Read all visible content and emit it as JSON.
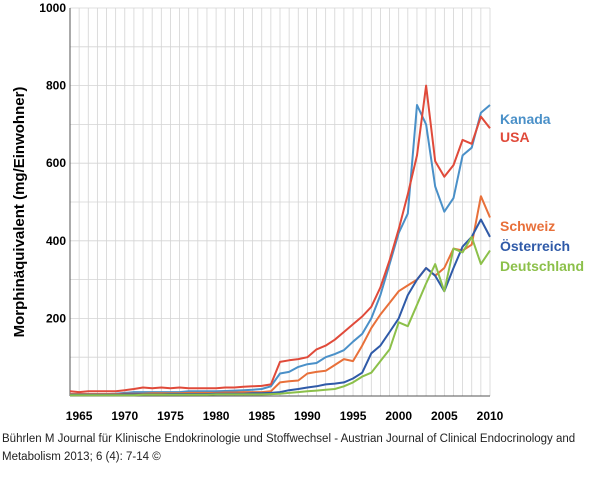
{
  "caption": "Bührlen M Journal für Klinische Endokrinologie und Stoffwechsel - Austrian Journal of Clinical Endocrinology and Metabolism 2013; 6 (4): 7-14 ©",
  "chart_data": {
    "type": "line",
    "title": "",
    "xlabel": "",
    "ylabel": "Morphinäquivalent (mg/Einwohner)",
    "xlim": [
      1964,
      2010
    ],
    "ylim": [
      0,
      1000
    ],
    "xticks": [
      1965,
      1970,
      1975,
      1980,
      1985,
      1990,
      1995,
      2000,
      2005,
      2010
    ],
    "yticks": [
      200,
      400,
      600,
      800,
      1000
    ],
    "grid": true,
    "legend": "right, labels next to line ends",
    "series": [
      {
        "name": "Kanada",
        "color": "#4a90c8",
        "x": [
          1964,
          1965,
          1966,
          1967,
          1968,
          1969,
          1970,
          1971,
          1972,
          1973,
          1974,
          1975,
          1976,
          1977,
          1978,
          1979,
          1980,
          1981,
          1982,
          1983,
          1984,
          1985,
          1986,
          1987,
          1988,
          1989,
          1990,
          1991,
          1992,
          1993,
          1994,
          1995,
          1996,
          1997,
          1998,
          1999,
          2000,
          2001,
          2002,
          2003,
          2004,
          2005,
          2006,
          2007,
          2008,
          2009,
          2010
        ],
        "y": [
          5,
          5,
          5,
          5,
          5,
          6,
          8,
          10,
          10,
          10,
          10,
          10,
          10,
          12,
          12,
          12,
          12,
          13,
          14,
          15,
          16,
          18,
          25,
          58,
          62,
          75,
          82,
          85,
          100,
          108,
          118,
          140,
          160,
          200,
          260,
          340,
          420,
          470,
          750,
          700,
          540,
          475,
          510,
          620,
          640,
          730,
          750
        ]
      },
      {
        "name": "USA",
        "color": "#e04a3a",
        "x": [
          1964,
          1965,
          1966,
          1967,
          1968,
          1969,
          1970,
          1971,
          1972,
          1973,
          1974,
          1975,
          1976,
          1977,
          1978,
          1979,
          1980,
          1981,
          1982,
          1983,
          1984,
          1985,
          1986,
          1987,
          1988,
          1989,
          1990,
          1991,
          1992,
          1993,
          1994,
          1995,
          1996,
          1997,
          1998,
          1999,
          2000,
          2001,
          2002,
          2003,
          2004,
          2005,
          2006,
          2007,
          2008,
          2009,
          2010
        ],
        "y": [
          12,
          10,
          12,
          12,
          12,
          12,
          15,
          18,
          22,
          20,
          22,
          20,
          22,
          20,
          20,
          20,
          20,
          22,
          22,
          24,
          25,
          26,
          30,
          88,
          92,
          95,
          100,
          120,
          130,
          145,
          165,
          185,
          205,
          230,
          280,
          350,
          430,
          520,
          620,
          800,
          605,
          565,
          595,
          660,
          650,
          720,
          690
        ]
      },
      {
        "name": "Schweiz",
        "color": "#e8703a",
        "x": [
          1964,
          1965,
          1966,
          1967,
          1968,
          1969,
          1970,
          1971,
          1972,
          1973,
          1974,
          1975,
          1976,
          1977,
          1978,
          1979,
          1980,
          1981,
          1982,
          1983,
          1984,
          1985,
          1986,
          1987,
          1988,
          1989,
          1990,
          1991,
          1992,
          1993,
          1994,
          1995,
          1996,
          1997,
          1998,
          1999,
          2000,
          2001,
          2002,
          2003,
          2004,
          2005,
          2006,
          2007,
          2008,
          2009,
          2010
        ],
        "y": [
          5,
          5,
          5,
          5,
          5,
          5,
          6,
          6,
          6,
          7,
          7,
          7,
          7,
          8,
          8,
          8,
          8,
          9,
          9,
          10,
          10,
          10,
          12,
          35,
          38,
          40,
          58,
          62,
          65,
          80,
          95,
          90,
          130,
          175,
          210,
          240,
          270,
          285,
          300,
          330,
          310,
          330,
          380,
          375,
          390,
          515,
          460
        ]
      },
      {
        "name": "Österreich",
        "color": "#2f5aa8",
        "x": [
          1964,
          1965,
          1966,
          1967,
          1968,
          1969,
          1970,
          1971,
          1972,
          1973,
          1974,
          1975,
          1976,
          1977,
          1978,
          1979,
          1980,
          1981,
          1982,
          1983,
          1984,
          1985,
          1986,
          1987,
          1988,
          1989,
          1990,
          1991,
          1992,
          1993,
          1994,
          1995,
          1996,
          1997,
          1998,
          1999,
          2000,
          2001,
          2002,
          2003,
          2004,
          2005,
          2006,
          2007,
          2008,
          2009,
          2010
        ],
        "y": [
          3,
          3,
          3,
          3,
          3,
          3,
          4,
          4,
          4,
          4,
          4,
          5,
          5,
          5,
          5,
          5,
          6,
          6,
          6,
          6,
          7,
          7,
          8,
          10,
          15,
          18,
          22,
          25,
          30,
          32,
          35,
          45,
          60,
          110,
          130,
          165,
          200,
          260,
          300,
          330,
          310,
          270,
          330,
          385,
          410,
          455,
          410
        ]
      },
      {
        "name": "Deutschland",
        "color": "#8cc04a",
        "x": [
          1964,
          1965,
          1966,
          1967,
          1968,
          1969,
          1970,
          1971,
          1972,
          1973,
          1974,
          1975,
          1976,
          1977,
          1978,
          1979,
          1980,
          1981,
          1982,
          1983,
          1984,
          1985,
          1986,
          1987,
          1988,
          1989,
          1990,
          1991,
          1992,
          1993,
          1994,
          1995,
          1996,
          1997,
          1998,
          1999,
          2000,
          2001,
          2002,
          2003,
          2004,
          2005,
          2006,
          2007,
          2008,
          2009,
          2010
        ],
        "y": [
          2,
          2,
          2,
          2,
          2,
          2,
          2,
          2,
          3,
          3,
          3,
          3,
          3,
          3,
          3,
          3,
          4,
          4,
          4,
          4,
          4,
          4,
          5,
          6,
          8,
          10,
          12,
          14,
          16,
          18,
          25,
          35,
          50,
          60,
          90,
          120,
          190,
          180,
          235,
          290,
          340,
          270,
          380,
          370,
          410,
          340,
          375
        ]
      }
    ]
  }
}
